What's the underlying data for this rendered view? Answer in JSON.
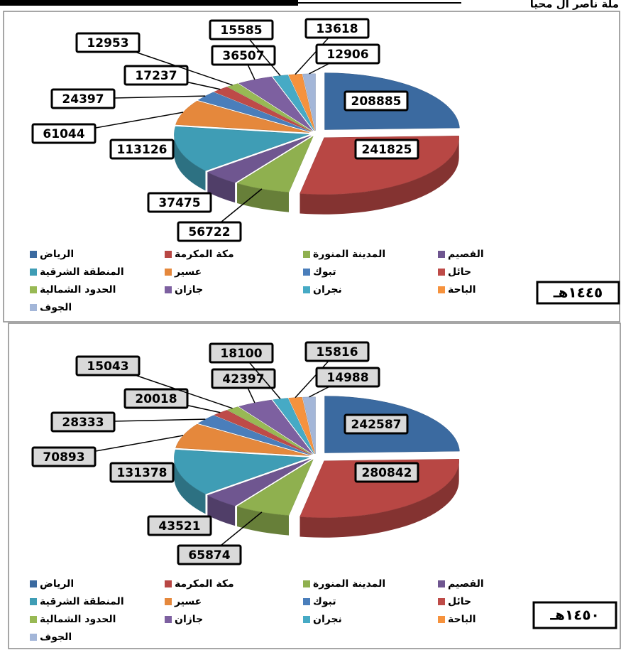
{
  "header": "ملة ناصر آل محيا",
  "chart_data": [
    {
      "type": "pie",
      "title": "١٤٤٥هـ",
      "label_fill": "#ffffff",
      "categories": [
        "الرياض",
        "مكة المكرمة",
        "المدينة المنورة",
        "القصيم",
        "المنطقة الشرقية",
        "عسير",
        "تبوك",
        "حائل",
        "الحدود الشمالية",
        "جازان",
        "نجران",
        "الباحة",
        "الجوف"
      ],
      "values": [
        208885,
        241825,
        56722,
        37475,
        113126,
        61044,
        24397,
        17237,
        12953,
        36507,
        15585,
        13618,
        12906
      ],
      "colors": [
        "#3b6aa0",
        "#b84744",
        "#8fb04f",
        "#6f5690",
        "#3f9db5",
        "#e5883c",
        "#4a7ebb",
        "#be4b48",
        "#98b954",
        "#7d60a0",
        "#46aac5",
        "#f6923d",
        "#a3b6d8"
      ]
    },
    {
      "type": "pie",
      "title": "١٤٥٠هـ",
      "label_fill": "#d9d9d9",
      "categories": [
        "الرياض",
        "مكة المكرمة",
        "المدينة المنورة",
        "القصيم",
        "المنطقة الشرقية",
        "عسير",
        "تبوك",
        "حائل",
        "الحدود الشمالية",
        "جازان",
        "نجران",
        "الباحة",
        "الجوف"
      ],
      "values": [
        242587,
        280842,
        65874,
        43521,
        131378,
        70893,
        28333,
        20018,
        15043,
        42397,
        18100,
        15816,
        14988
      ],
      "colors": [
        "#3b6aa0",
        "#b84744",
        "#8fb04f",
        "#6f5690",
        "#3f9db5",
        "#e5883c",
        "#4a7ebb",
        "#be4b48",
        "#98b954",
        "#7d60a0",
        "#46aac5",
        "#f6923d",
        "#a3b6d8"
      ]
    }
  ]
}
